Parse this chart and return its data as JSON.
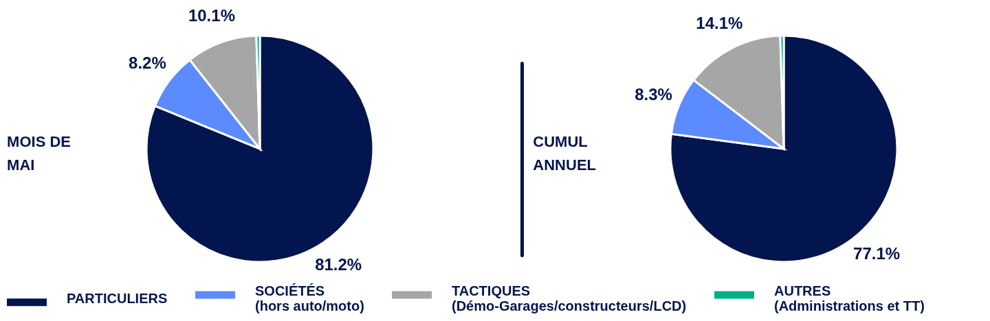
{
  "chart_data": [
    {
      "type": "pie",
      "title": "MOIS DE MAI",
      "categories": [
        "PARTICULIERS",
        "SOCIÉTÉS\n(hors auto/moto)",
        "TACTIQUES\n(Démo-Garages/constructeurs/LCD)",
        "AUTRES\n(Administrations et TT)"
      ],
      "values": [
        81.2,
        8.2,
        10.1,
        0.5
      ],
      "colors": [
        "#03154e",
        "#5b8bfe",
        "#a6a6a6",
        "#00b084"
      ],
      "value_labels": [
        "81.2%",
        "8.2%",
        "10.1%",
        null
      ],
      "legend": "bottom"
    },
    {
      "type": "pie",
      "title": "CUMUL ANNUEL",
      "categories": [
        null,
        null,
        null,
        null
      ],
      "values": [
        77.1,
        8.3,
        14.1,
        0.5
      ],
      "colors": [
        "#03154e",
        "#5b8bfe",
        "#a6a6a6",
        "#00b084"
      ],
      "value_labels": [
        "77.1%",
        "8.3%",
        "14.1%",
        null
      ]
    }
  ]
}
